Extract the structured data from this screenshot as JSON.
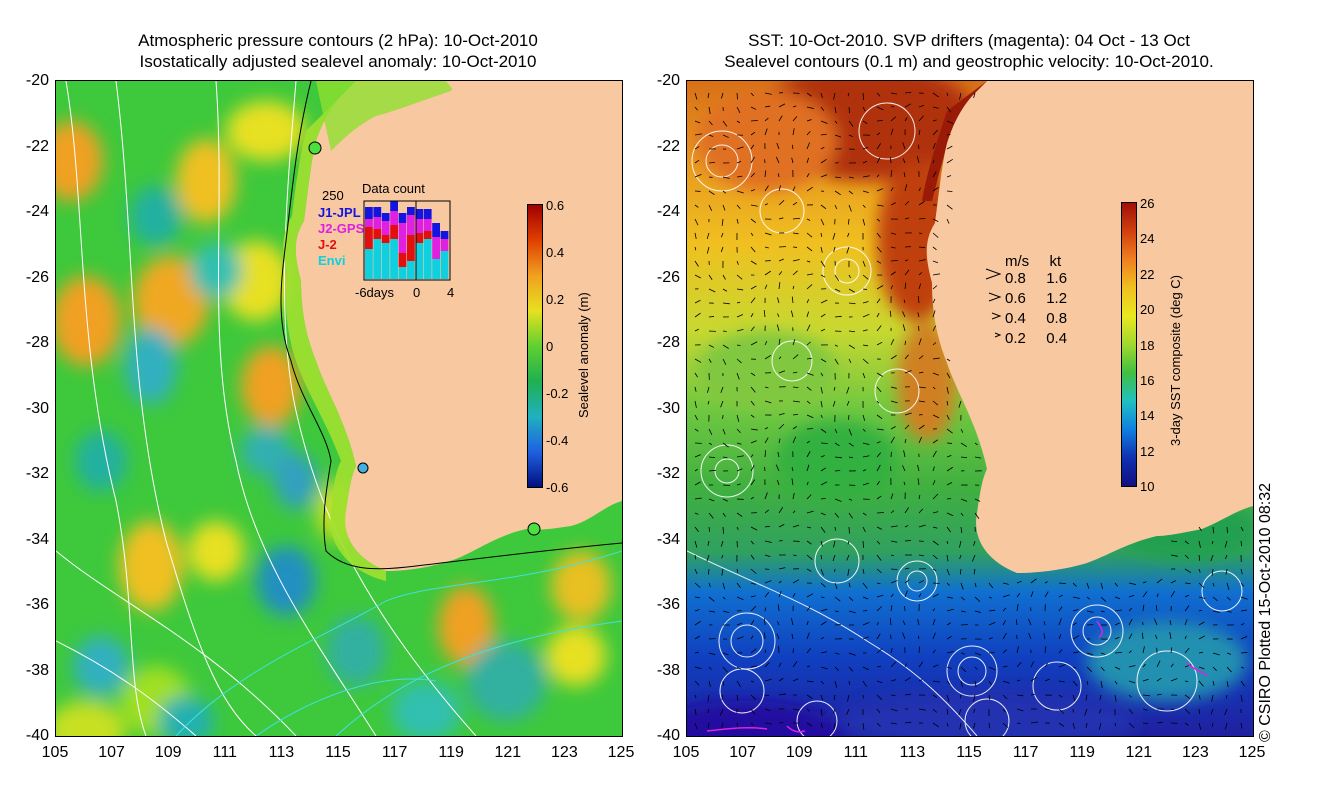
{
  "left_panel": {
    "title_line1": "Atmospheric pressure contours (2 hPa): 10-Oct-2010",
    "title_line2": "Isostatically adjusted sealevel anomaly: 10-Oct-2010",
    "y_ticks": [
      "-20",
      "-22",
      "-24",
      "-26",
      "-28",
      "-30",
      "-32",
      "-34",
      "-36",
      "-38",
      "-40"
    ],
    "x_ticks": [
      "105",
      "107",
      "109",
      "111",
      "113",
      "115",
      "117",
      "119",
      "121",
      "123",
      "125"
    ],
    "colorbar": {
      "label": "Sealevel anomaly (m)",
      "ticks": [
        "0.6",
        "0.4",
        "0.2",
        "0",
        "-0.2",
        "-0.4",
        "-0.6"
      ],
      "range": [
        -0.6,
        0.6
      ]
    },
    "data_count": {
      "title": "Data count",
      "max_label": "250",
      "x_labels": [
        "-6days",
        "0",
        "4"
      ],
      "satellites": [
        {
          "name": "J1-JPL",
          "color": "#1414e0"
        },
        {
          "name": "J2-GPS",
          "color": "#e020e0"
        },
        {
          "name": "J-2",
          "color": "#e01010"
        },
        {
          "name": "Envi",
          "color": "#10d0e0"
        }
      ]
    }
  },
  "right_panel": {
    "title_line1": "SST: 10-Oct-2010. SVP drifters (magenta): 04 Oct - 13 Oct",
    "title_line2": "Sealevel contours (0.1 m) and geostrophic velocity: 10-Oct-2010.",
    "y_ticks": [
      "-20",
      "-22",
      "-24",
      "-26",
      "-28",
      "-30",
      "-32",
      "-34",
      "-36",
      "-38",
      "-40"
    ],
    "x_ticks": [
      "105",
      "107",
      "109",
      "111",
      "113",
      "115",
      "117",
      "119",
      "121",
      "123",
      "125"
    ],
    "colorbar": {
      "label": "3-day SST composite (deg C)",
      "ticks": [
        "26",
        "24",
        "22",
        "20",
        "18",
        "16",
        "14",
        "12",
        "10"
      ],
      "range": [
        10,
        26
      ]
    },
    "velocity_legend": {
      "header_ms": "m/s",
      "header_kt": "kt",
      "rows": [
        {
          "ms": "0.8",
          "kt": "1.6"
        },
        {
          "ms": "0.6",
          "kt": "1.2"
        },
        {
          "ms": "0.4",
          "kt": "0.8"
        },
        {
          "ms": "0.2",
          "kt": "0.4"
        }
      ]
    }
  },
  "credit": "© CSIRO Plotted 15-Oct-2010 08:32",
  "colors": {
    "land": "#f8c8a0",
    "contour_white": "#ffffff",
    "contour_cyan": "#40e0e0",
    "drifter_magenta": "#e020e0"
  }
}
